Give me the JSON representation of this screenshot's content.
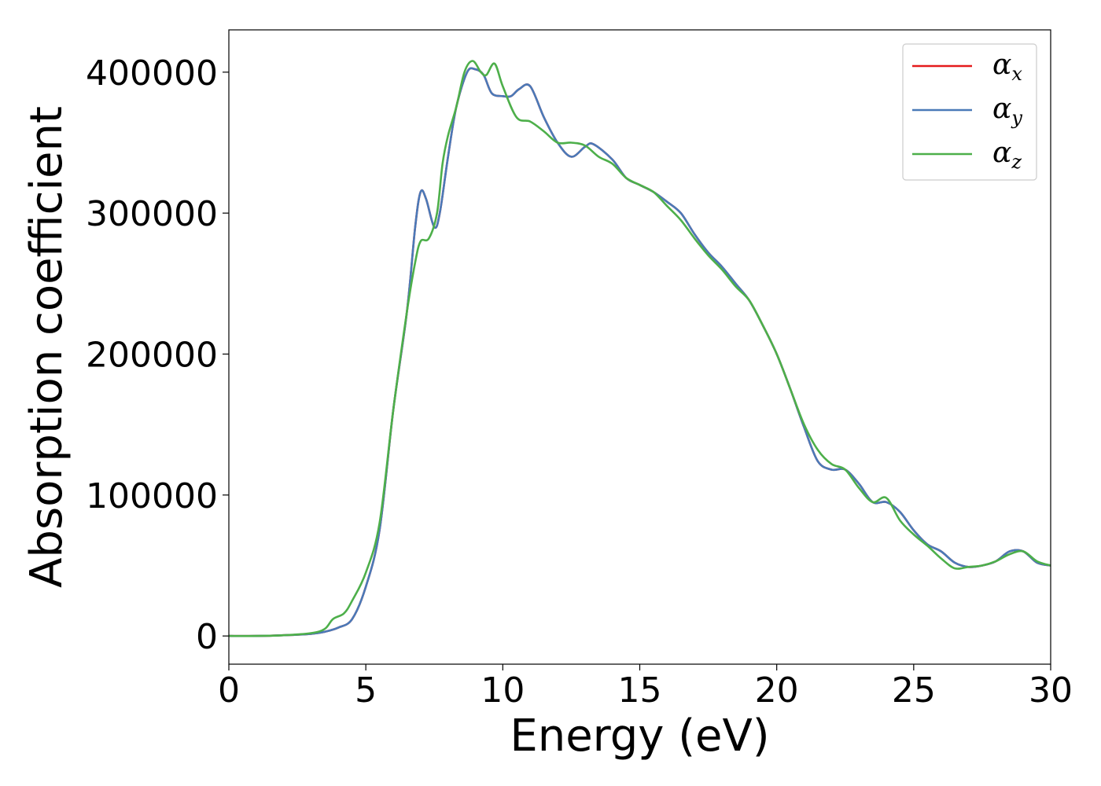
{
  "chart_data": {
    "type": "line",
    "title": "",
    "xlabel": "Energy (eV)",
    "ylabel": "Absorption coefficient",
    "xlim": [
      0,
      30
    ],
    "ylim": [
      -20000,
      430000
    ],
    "xticks": [
      0,
      5,
      10,
      15,
      20,
      25,
      30
    ],
    "yticks": [
      0,
      100000,
      200000,
      300000,
      400000
    ],
    "grid": false,
    "legend_position": "top-right",
    "series": [
      {
        "name": "α",
        "sub": "x",
        "color": "#e41a1c",
        "x": [
          0,
          1,
          2,
          3,
          3.5,
          4,
          4.5,
          5,
          5.5,
          6,
          6.5,
          6.8,
          7,
          7.2,
          7.5,
          7.7,
          8,
          8.3,
          8.7,
          9,
          9.3,
          9.6,
          10,
          10.3,
          10.6,
          11,
          11.5,
          12,
          12.5,
          13,
          13.3,
          14,
          14.5,
          15,
          15.5,
          16,
          16.5,
          17,
          17.5,
          18,
          18.5,
          19,
          19.5,
          20,
          20.5,
          21,
          21.5,
          22,
          22.5,
          23,
          23.5,
          24,
          24.5,
          25,
          25.5,
          26,
          26.5,
          27,
          27.5,
          28,
          28.5,
          29,
          29.5,
          30
        ],
        "y": [
          0,
          0,
          500,
          1500,
          3000,
          6000,
          12000,
          35000,
          75000,
          160000,
          230000,
          290000,
          315000,
          310000,
          290000,
          300000,
          340000,
          375000,
          400000,
          402000,
          398000,
          385000,
          383000,
          383000,
          388000,
          390000,
          368000,
          350000,
          340000,
          347000,
          349000,
          338000,
          325000,
          320000,
          315000,
          308000,
          300000,
          285000,
          272000,
          262000,
          250000,
          238000,
          220000,
          200000,
          175000,
          148000,
          124000,
          118000,
          118000,
          108000,
          95000,
          95000,
          88000,
          75000,
          65000,
          60000,
          52000,
          49000,
          50000,
          53000,
          60000,
          60000,
          52000,
          50000
        ]
      },
      {
        "name": "α",
        "sub": "y",
        "color": "#4a7ab8",
        "x": [
          0,
          1,
          2,
          3,
          3.5,
          4,
          4.5,
          5,
          5.5,
          6,
          6.5,
          6.8,
          7,
          7.2,
          7.5,
          7.7,
          8,
          8.3,
          8.7,
          9,
          9.3,
          9.6,
          10,
          10.3,
          10.6,
          11,
          11.5,
          12,
          12.5,
          13,
          13.3,
          14,
          14.5,
          15,
          15.5,
          16,
          16.5,
          17,
          17.5,
          18,
          18.5,
          19,
          19.5,
          20,
          20.5,
          21,
          21.5,
          22,
          22.5,
          23,
          23.5,
          24,
          24.5,
          25,
          25.5,
          26,
          26.5,
          27,
          27.5,
          28,
          28.5,
          29,
          29.5,
          30
        ],
        "y": [
          0,
          0,
          500,
          1500,
          3000,
          6000,
          12000,
          35000,
          75000,
          160000,
          230000,
          290000,
          315000,
          310000,
          290000,
          300000,
          340000,
          375000,
          400000,
          402000,
          398000,
          385000,
          383000,
          383000,
          388000,
          390000,
          368000,
          350000,
          340000,
          347000,
          349000,
          338000,
          325000,
          320000,
          315000,
          308000,
          300000,
          285000,
          272000,
          262000,
          250000,
          238000,
          220000,
          200000,
          175000,
          148000,
          124000,
          118000,
          118000,
          108000,
          95000,
          95000,
          88000,
          75000,
          65000,
          60000,
          52000,
          49000,
          50000,
          53000,
          60000,
          60000,
          52000,
          50000
        ]
      },
      {
        "name": "α",
        "sub": "z",
        "color": "#4daf4a",
        "x": [
          0,
          1,
          2,
          3,
          3.5,
          3.8,
          4.2,
          4.5,
          5,
          5.5,
          6,
          6.5,
          6.8,
          7,
          7.3,
          7.6,
          7.8,
          8,
          8.3,
          8.6,
          8.9,
          9.2,
          9.4,
          9.7,
          10,
          10.5,
          11,
          11.5,
          12,
          12.5,
          13,
          13.5,
          14,
          14.5,
          15,
          15.5,
          16,
          16.5,
          17,
          17.5,
          18,
          18.5,
          19,
          19.5,
          20,
          20.5,
          21,
          21.5,
          22,
          22.5,
          23,
          23.5,
          24,
          24.5,
          25,
          25.5,
          26,
          26.5,
          27,
          27.5,
          28,
          28.5,
          29,
          29.5,
          30
        ],
        "y": [
          0,
          0,
          500,
          2000,
          5000,
          12000,
          16000,
          25000,
          45000,
          80000,
          160000,
          230000,
          265000,
          280000,
          282000,
          300000,
          335000,
          355000,
          375000,
          400000,
          408000,
          400000,
          398000,
          406000,
          390000,
          368000,
          365000,
          358000,
          350000,
          350000,
          348000,
          340000,
          335000,
          325000,
          320000,
          315000,
          305000,
          295000,
          282000,
          270000,
          260000,
          248000,
          238000,
          220000,
          200000,
          175000,
          150000,
          132000,
          122000,
          118000,
          105000,
          95000,
          98000,
          82000,
          72000,
          64000,
          55000,
          48000,
          49000,
          50000,
          53000,
          58000,
          60000,
          53000,
          50000
        ]
      }
    ]
  }
}
